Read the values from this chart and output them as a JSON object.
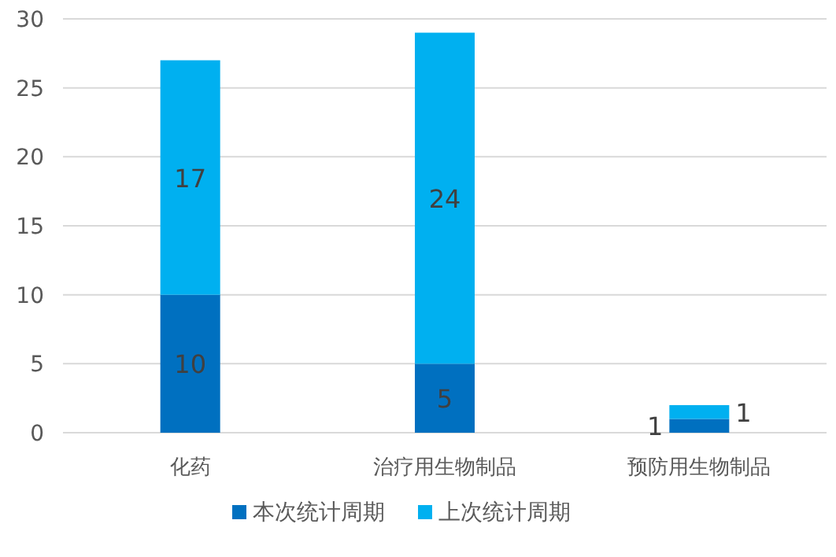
{
  "chart_data": {
    "type": "bar",
    "stacked": true,
    "categories": [
      "化药",
      "治疗用生物制品",
      "预防用生物制品"
    ],
    "series": [
      {
        "name": "本次统计周期",
        "color": "#0070c0",
        "values": [
          10,
          5,
          1
        ]
      },
      {
        "name": "上次统计周期",
        "color": "#00b0f0",
        "values": [
          17,
          24,
          1
        ]
      }
    ],
    "ylim": [
      0,
      30
    ],
    "yticks": [
      0,
      5,
      10,
      15,
      20,
      25,
      30
    ],
    "grid": "y",
    "legend": "bottom",
    "data_labels": true
  }
}
